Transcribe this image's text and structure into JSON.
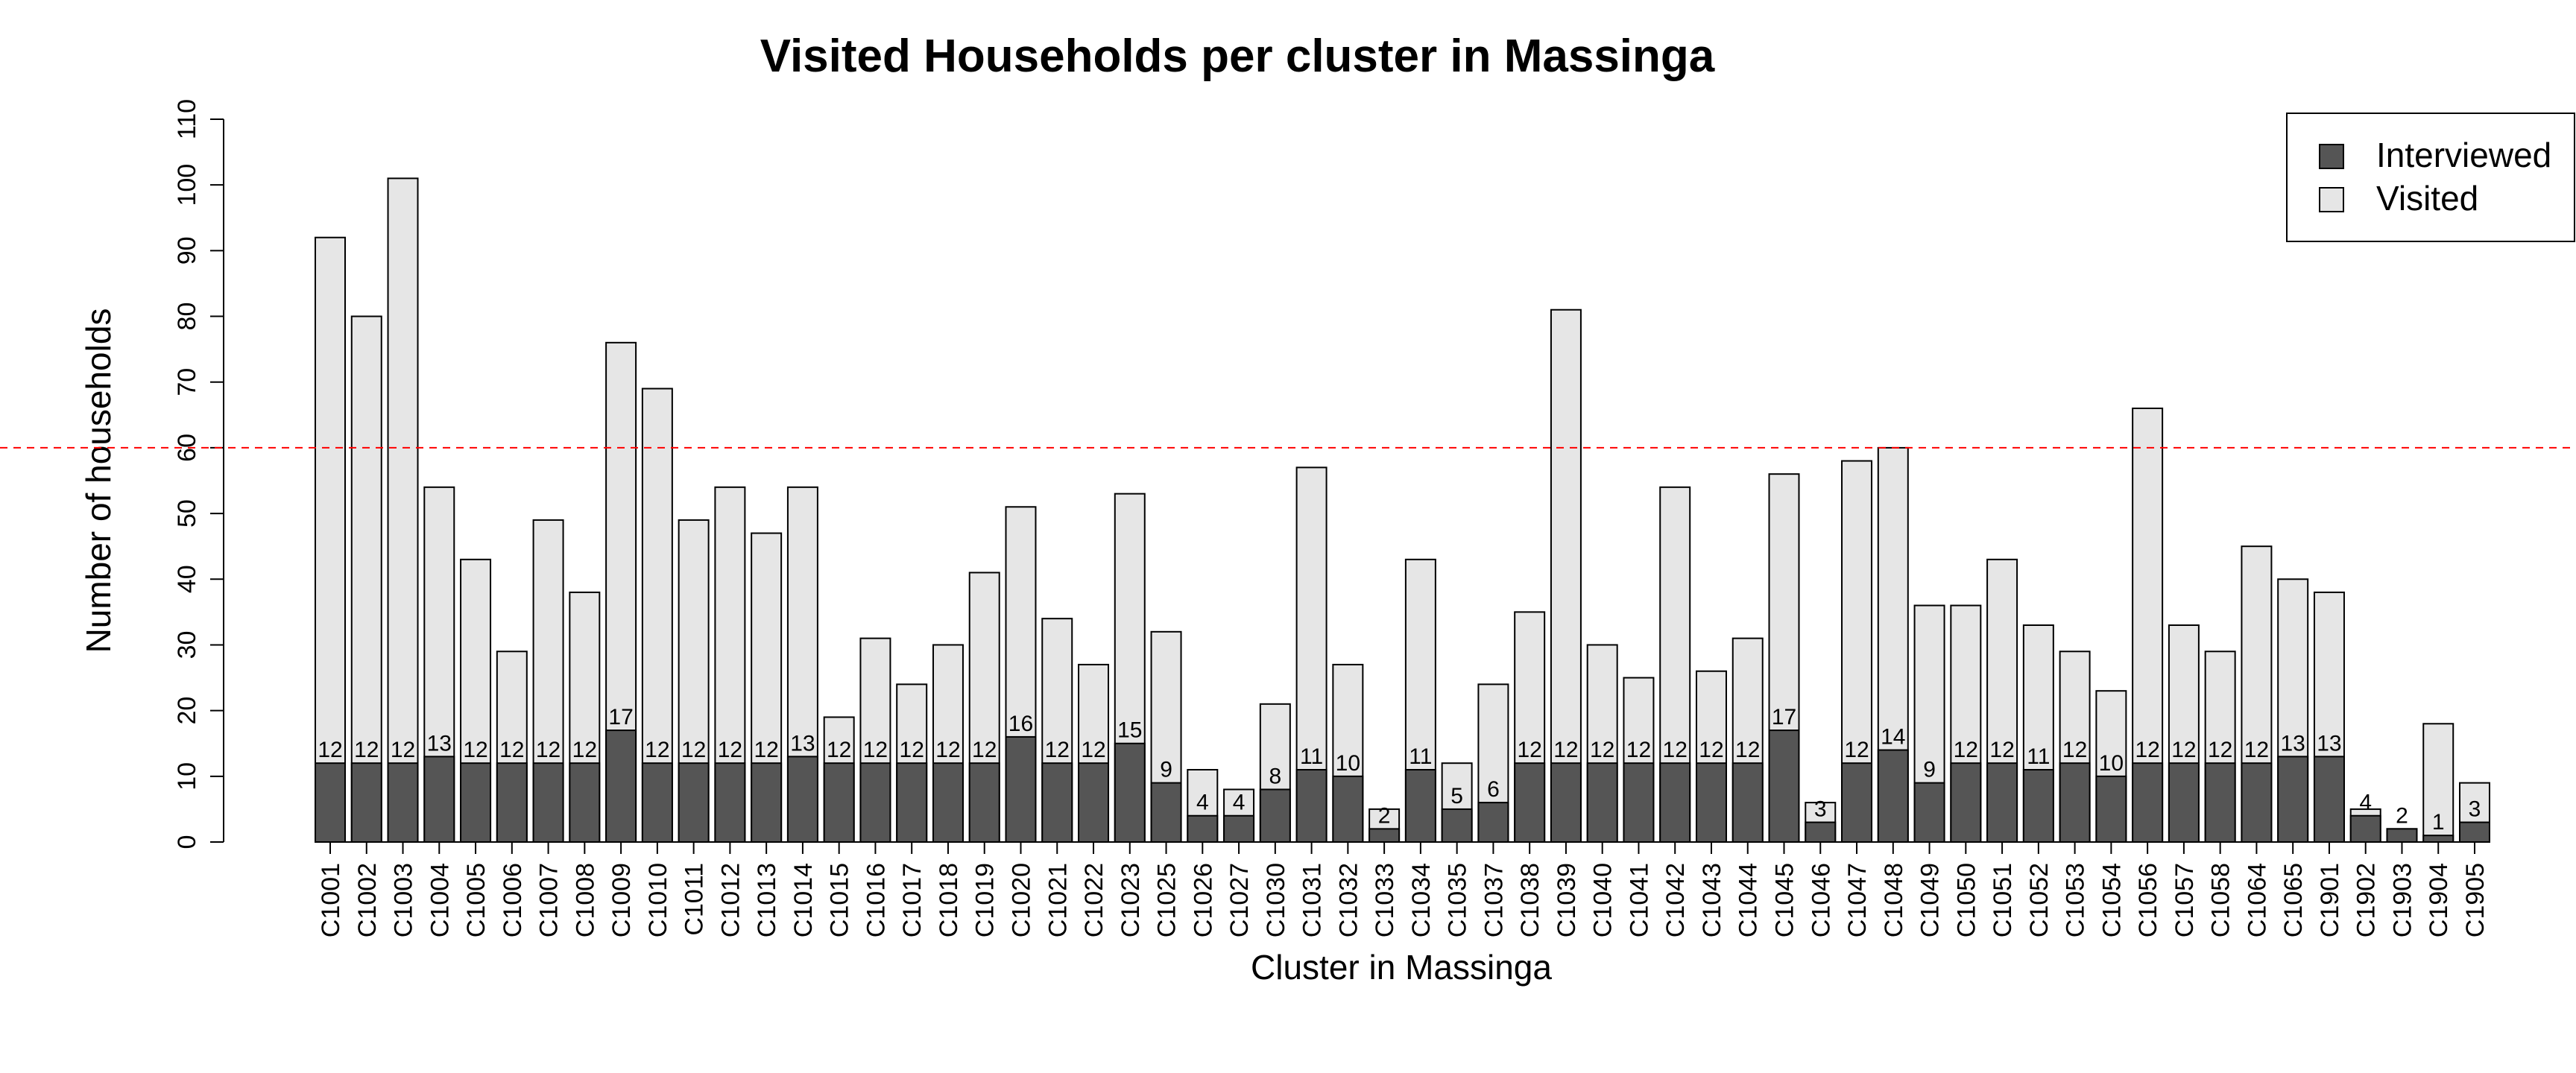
{
  "chart_data": {
    "type": "bar",
    "title": "Visited Households per cluster in Massinga",
    "xlabel": "Cluster in Massinga",
    "ylabel": "Number of households",
    "ylim": [
      0,
      110
    ],
    "yticks": [
      0,
      10,
      20,
      30,
      40,
      50,
      60,
      70,
      80,
      90,
      100,
      110
    ],
    "reference_line": {
      "value": 60,
      "color": "#ff0000",
      "style": "dashed"
    },
    "grid": false,
    "legend_position": "top-right",
    "categories": [
      "C1001",
      "C1002",
      "C1003",
      "C1004",
      "C1005",
      "C1006",
      "C1007",
      "C1008",
      "C1009",
      "C1010",
      "C1011",
      "C1012",
      "C1013",
      "C1014",
      "C1015",
      "C1016",
      "C1017",
      "C1018",
      "C1019",
      "C1020",
      "C1021",
      "C1022",
      "C1023",
      "C1025",
      "C1026",
      "C1027",
      "C1030",
      "C1031",
      "C1032",
      "C1033",
      "C1034",
      "C1035",
      "C1037",
      "C1038",
      "C1039",
      "C1040",
      "C1041",
      "C1042",
      "C1043",
      "C1044",
      "C1045",
      "C1046",
      "C1047",
      "C1048",
      "C1049",
      "C1050",
      "C1051",
      "C1052",
      "C1053",
      "C1054",
      "C1056",
      "C1057",
      "C1058",
      "C1064",
      "C1065",
      "C1901",
      "C1902",
      "C1903",
      "C1904",
      "C1905"
    ],
    "series": [
      {
        "name": "Interviewed",
        "color": "#555555",
        "values": [
          12,
          12,
          12,
          13,
          12,
          12,
          12,
          12,
          17,
          12,
          12,
          12,
          12,
          13,
          12,
          12,
          12,
          12,
          12,
          16,
          12,
          12,
          15,
          9,
          4,
          4,
          8,
          11,
          10,
          2,
          11,
          5,
          6,
          12,
          12,
          12,
          12,
          12,
          12,
          12,
          17,
          3,
          12,
          14,
          9,
          12,
          12,
          11,
          12,
          10,
          12,
          12,
          12,
          12,
          13,
          13,
          4,
          2,
          1,
          3
        ]
      },
      {
        "name": "Visited",
        "color": "#e6e6e6",
        "values": [
          92,
          80,
          101,
          54,
          43,
          29,
          49,
          38,
          76,
          69,
          49,
          54,
          47,
          54,
          19,
          31,
          24,
          30,
          41,
          51,
          34,
          27,
          53,
          32,
          11,
          8,
          21,
          57,
          27,
          5,
          43,
          12,
          24,
          35,
          81,
          30,
          25,
          54,
          26,
          31,
          56,
          6,
          58,
          60,
          36,
          36,
          43,
          33,
          29,
          23,
          66,
          33,
          29,
          45,
          40,
          38,
          5,
          2,
          18,
          9
        ]
      }
    ]
  }
}
